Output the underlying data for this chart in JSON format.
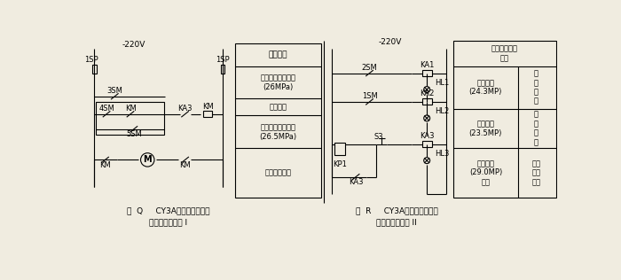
{
  "bg_color": "#f0ece0",
  "line_color": "#000000",
  "fig_q_caption_line1": "图  Q     CY3A型液压操动机构",
  "fig_q_caption_line2": "的压力控制电路 I",
  "fig_r_caption_line1": "图  R     CY3A型液压操动机构",
  "fig_r_caption_line2": "的压力控制电路 II",
  "voltage_label_q": "-220V",
  "voltage_label_r": "-220V"
}
